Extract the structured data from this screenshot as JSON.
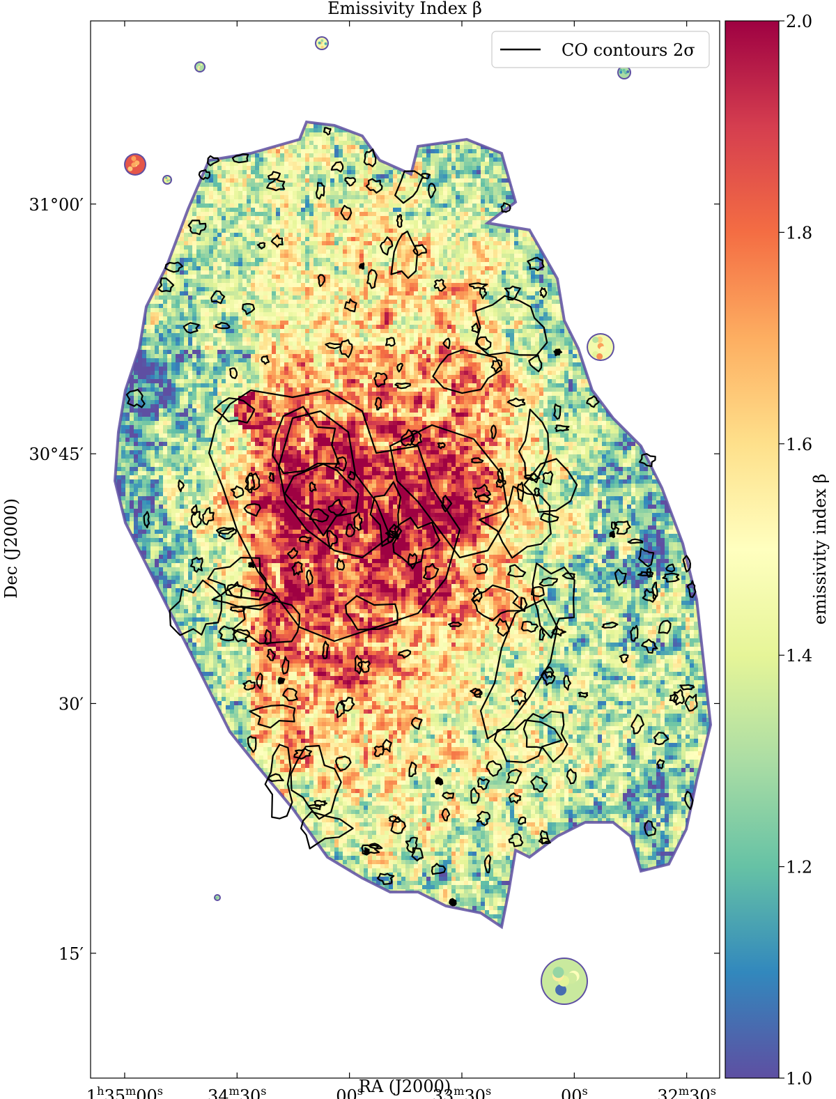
{
  "chart_data": {
    "type": "heatmap",
    "title": "Emissivity Index β",
    "xlabel": "RA (J2000)",
    "ylabel": "Dec (J2000)",
    "colorbar_label": "emissivity index β",
    "colormap": "Spectral_r",
    "colormap_stops": [
      "#5e4fa2",
      "#3288bd",
      "#66c2a5",
      "#abdda4",
      "#e6f598",
      "#ffffbf",
      "#fee08b",
      "#fdae61",
      "#f46d43",
      "#d53e4f",
      "#9e0142"
    ],
    "value_range": [
      1.0,
      2.0
    ],
    "colorbar_ticks": [
      "1.0",
      "1.2",
      "1.4",
      "1.6",
      "1.8",
      "2.0"
    ],
    "colorbar_tick_values": [
      1.0,
      1.2,
      1.4,
      1.6,
      1.8,
      2.0
    ],
    "x_ticks": [
      {
        "label_main": "1",
        "label_parts": [
          [
            "1",
            ""
          ],
          [
            "h",
            "sup"
          ],
          [
            "35",
            ""
          ],
          [
            "m",
            "sup"
          ],
          [
            "00",
            ""
          ],
          [
            "s",
            "sup"
          ]
        ],
        "ra_seconds": 5700
      },
      {
        "label_parts": [
          [
            "34",
            ""
          ],
          [
            "m",
            "sup"
          ],
          [
            "30",
            ""
          ],
          [
            "s",
            "sup"
          ]
        ],
        "ra_seconds": 5670
      },
      {
        "label_parts": [
          [
            "00",
            ""
          ],
          [
            "s",
            "sup"
          ]
        ],
        "ra_seconds": 5640
      },
      {
        "label_parts": [
          [
            "33",
            ""
          ],
          [
            "m",
            "sup"
          ],
          [
            "30",
            ""
          ],
          [
            "s",
            "sup"
          ]
        ],
        "ra_seconds": 5610
      },
      {
        "label_parts": [
          [
            "00",
            ""
          ],
          [
            "s",
            "sup"
          ]
        ],
        "ra_seconds": 5580
      },
      {
        "label_parts": [
          [
            "32",
            ""
          ],
          [
            "m",
            "sup"
          ],
          [
            "30",
            ""
          ],
          [
            "s",
            "sup"
          ]
        ],
        "ra_seconds": 5550
      }
    ],
    "y_ticks": [
      {
        "label": "31°00′",
        "dec_arcmin": 60
      },
      {
        "label": "30°45′",
        "dec_arcmin": 45
      },
      {
        "label": "30′",
        "dec_arcmin": 30
      },
      {
        "label": "15′",
        "dec_arcmin": 15
      }
    ],
    "legend": {
      "label": "CO contours 2σ",
      "placement": "upper-right",
      "line_color": "#000000"
    },
    "map": {
      "ra_range_s": [
        5709.1,
        5541.2
      ],
      "dec_range_arcmin": [
        7.5,
        71.0
      ],
      "center_ra_s": 5637,
      "center_dec_arcmin": 41.0,
      "beta_center": 1.95,
      "beta_edge": 1.2
    }
  }
}
